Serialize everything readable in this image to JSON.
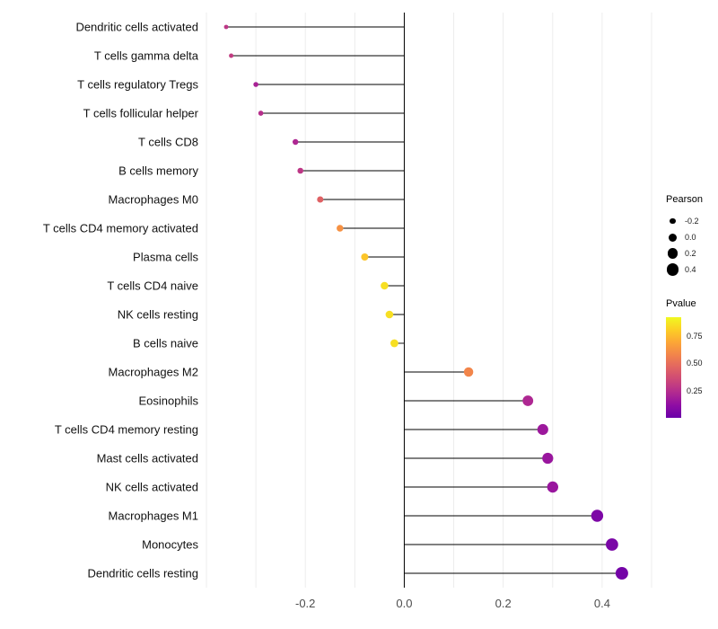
{
  "chart_data": {
    "type": "scatter",
    "subtype": "lollipop",
    "title": "",
    "xlabel": "",
    "ylabel": "",
    "xlim": [
      -0.4,
      0.5
    ],
    "x_ticks": [
      -0.2,
      0.0,
      0.2,
      0.4
    ],
    "x_tick_labels": [
      "-0.2",
      "0.0",
      "0.2",
      "0.4"
    ],
    "grid": "light vertical gridlines every 0.1, black vertical baseline at 0",
    "legend_position": "right",
    "categories": [
      "Dendritic cells activated",
      "T cells gamma delta",
      "T cells regulatory Tregs",
      "T cells follicular helper",
      "T cells CD8",
      "B cells memory",
      "Macrophages M0",
      "T cells CD4 memory activated",
      "Plasma cells",
      "T cells CD4 naive",
      "NK cells resting",
      "B cells naive",
      "Macrophages M2",
      "Eosinophils",
      "T cells CD4 memory resting",
      "Mast cells activated",
      "NK cells activated",
      "Macrophages M1",
      "Monocytes",
      "Dendritic cells resting"
    ],
    "series": [
      {
        "name": "Pearson",
        "values": [
          -0.36,
          -0.35,
          -0.3,
          -0.29,
          -0.22,
          -0.21,
          -0.17,
          -0.13,
          -0.08,
          -0.04,
          -0.03,
          -0.02,
          0.13,
          0.25,
          0.28,
          0.29,
          0.3,
          0.39,
          0.42,
          0.44
        ]
      },
      {
        "name": "Pvalue",
        "values": [
          0.28,
          0.3,
          0.2,
          0.25,
          0.22,
          0.28,
          0.45,
          0.62,
          0.78,
          0.85,
          0.85,
          0.85,
          0.58,
          0.22,
          0.16,
          0.15,
          0.15,
          0.06,
          0.05,
          0.03
        ]
      }
    ],
    "legends": {
      "size": {
        "title": "Pearson",
        "labels": [
          "-0.2",
          "0.0",
          "0.2",
          "0.4"
        ],
        "values": [
          -0.2,
          0.0,
          0.2,
          0.4
        ],
        "dot_color": "#000000"
      },
      "color": {
        "title": "Pvalue",
        "labels": [
          "0.75",
          "0.50",
          "0.25"
        ],
        "values": [
          0.75,
          0.5,
          0.25
        ],
        "domain": [
          0,
          0.92
        ],
        "colormap": "plasma",
        "stops": [
          "#6A00A8",
          "#8F0DA4",
          "#B12A90",
          "#CC4778",
          "#E16462",
          "#F2844B",
          "#FCA636",
          "#FCCE25",
          "#F0F921"
        ]
      }
    },
    "colors": {
      "stem": "#000000",
      "zero_baseline": "#000000",
      "gridline": "#ececec",
      "axis_tick_text": "#4d4d4d",
      "category_text": "#111111",
      "background": "#ffffff"
    }
  }
}
